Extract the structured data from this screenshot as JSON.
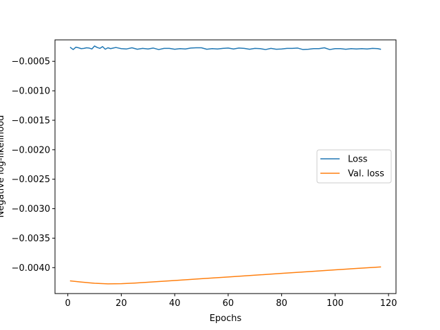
{
  "chart_data": {
    "type": "line",
    "title": "",
    "xlabel": "Epochs",
    "ylabel": "Negative log-likelihood",
    "xlim": [
      -4.8,
      122.8
    ],
    "ylim": [
      -0.00444,
      -0.000136
    ],
    "x_ticks": [
      0,
      20,
      40,
      60,
      80,
      100,
      120
    ],
    "x_tick_labels": [
      "0",
      "20",
      "40",
      "60",
      "80",
      "100",
      "120"
    ],
    "y_ticks": [
      -0.0005,
      -0.001,
      -0.0015,
      -0.002,
      -0.0025,
      -0.003,
      -0.0035,
      -0.004
    ],
    "y_tick_labels": [
      "−0.0005",
      "−0.0010",
      "−0.0015",
      "−0.0020",
      "−0.0025",
      "−0.0030",
      "−0.0035",
      "−0.0040"
    ],
    "grid": false,
    "legend_position": "center-right",
    "series": [
      {
        "name": "Loss",
        "color": "#1f77b4",
        "x": [
          1,
          2,
          3,
          4,
          5,
          6,
          7,
          8,
          9,
          10,
          11,
          12,
          13,
          14,
          15,
          16,
          17,
          18,
          19,
          20,
          22,
          24,
          26,
          28,
          30,
          32,
          34,
          36,
          38,
          40,
          42,
          44,
          46,
          48,
          50,
          52,
          54,
          56,
          58,
          60,
          62,
          64,
          66,
          68,
          70,
          72,
          74,
          76,
          78,
          80,
          82,
          84,
          86,
          88,
          90,
          92,
          94,
          96,
          98,
          100,
          102,
          104,
          106,
          108,
          110,
          112,
          114,
          116,
          117
        ],
        "values": [
          -0.000265,
          -0.0003,
          -0.00026,
          -0.00027,
          -0.000285,
          -0.00028,
          -0.00027,
          -0.000275,
          -0.00029,
          -0.00024,
          -0.000265,
          -0.00028,
          -0.00025,
          -0.000295,
          -0.00027,
          -0.000285,
          -0.000275,
          -0.000265,
          -0.000275,
          -0.000285,
          -0.00029,
          -0.00027,
          -0.000295,
          -0.00028,
          -0.00029,
          -0.000275,
          -0.0003,
          -0.00028,
          -0.00028,
          -0.000295,
          -0.000285,
          -0.00029,
          -0.000275,
          -0.00027,
          -0.00027,
          -0.000295,
          -0.000285,
          -0.00029,
          -0.00028,
          -0.000275,
          -0.00029,
          -0.000275,
          -0.00028,
          -0.000295,
          -0.00028,
          -0.000285,
          -0.0003,
          -0.00028,
          -0.000295,
          -0.00029,
          -0.00028,
          -0.00028,
          -0.000275,
          -0.0003,
          -0.000295,
          -0.000285,
          -0.000285,
          -0.00027,
          -0.0003,
          -0.000285,
          -0.000285,
          -0.000295,
          -0.000285,
          -0.00029,
          -0.000285,
          -0.00029,
          -0.00028,
          -0.000285,
          -0.000295
        ]
      },
      {
        "name": "Val. loss",
        "color": "#ff7f0e",
        "x": [
          1,
          5,
          10,
          15,
          20,
          25,
          30,
          40,
          50,
          60,
          70,
          80,
          90,
          100,
          110,
          117
        ],
        "values": [
          -0.004225,
          -0.004245,
          -0.004265,
          -0.004275,
          -0.004272,
          -0.004262,
          -0.004248,
          -0.004218,
          -0.004188,
          -0.004158,
          -0.004128,
          -0.004098,
          -0.004068,
          -0.004038,
          -0.004008,
          -0.003988
        ]
      }
    ]
  }
}
